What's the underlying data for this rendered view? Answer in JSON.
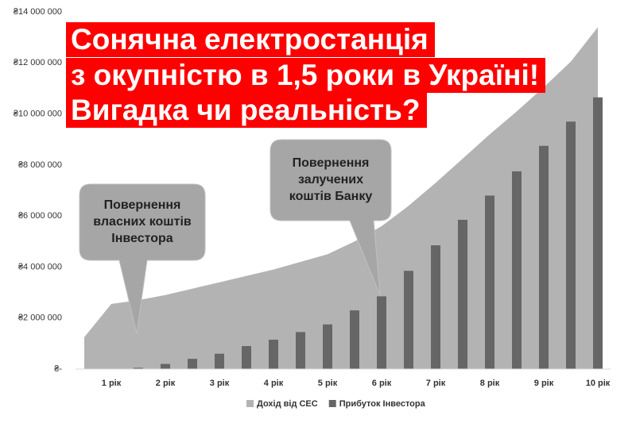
{
  "chart_data": {
    "type": "area_bar",
    "title_lines": [
      "Сонячна електростанція",
      "з окупністю в 1,5 роки в Україні!",
      "Вигадка чи реальність?"
    ],
    "categories": [
      null,
      "1 рік",
      null,
      "2 рік",
      null,
      "3 рік",
      null,
      "4 рік",
      null,
      "5 рік",
      null,
      "6 рік",
      null,
      "7 рік",
      null,
      "8 рік",
      null,
      "9 рік",
      null,
      "10 рік"
    ],
    "series": [
      {
        "name": "Дохід від СЕС",
        "color": "#b3b3b3",
        "kind": "area",
        "values": [
          1250000,
          2550000,
          2700000,
          2900000,
          3150000,
          3400000,
          3650000,
          3900000,
          4200000,
          4500000,
          5000000,
          5600000,
          6400000,
          7300000,
          8250000,
          9200000,
          10100000,
          11050000,
          12050000,
          13400000
        ]
      },
      {
        "name": "Прибуток Інвестора",
        "color": "#666666",
        "kind": "bar",
        "values": [
          null,
          null,
          50000,
          200000,
          400000,
          600000,
          900000,
          1150000,
          1450000,
          1750000,
          2300000,
          2850000,
          3850000,
          4850000,
          5850000,
          6800000,
          7750000,
          8750000,
          9700000,
          10650000
        ]
      }
    ],
    "ylim": [
      0,
      14000000
    ],
    "yticks": [
      {
        "value": 0,
        "label": "₴-"
      },
      {
        "value": 2000000,
        "label": "₴2 000 000"
      },
      {
        "value": 4000000,
        "label": "₴4 000 000"
      },
      {
        "value": 6000000,
        "label": "₴6 000 000"
      },
      {
        "value": 8000000,
        "label": "₴8 000 000"
      },
      {
        "value": 10000000,
        "label": "₴10 000 000"
      },
      {
        "value": 12000000,
        "label": "₴12 000 000"
      },
      {
        "value": 14000000,
        "label": "₴14 000 000"
      }
    ],
    "annotations": [
      {
        "lines": [
          "Повернення",
          "власних коштів",
          "Інвестора"
        ]
      },
      {
        "lines": [
          "Повернення",
          "залучених",
          "коштів Банку"
        ]
      }
    ],
    "legend": "bottom"
  }
}
